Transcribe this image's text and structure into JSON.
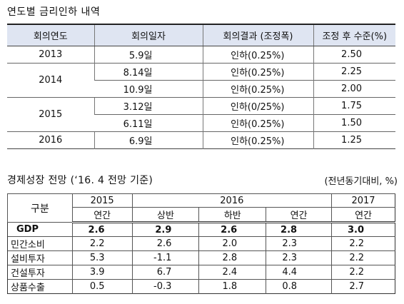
{
  "section1": {
    "title": "연도별 금리인하 내역",
    "headers": [
      "회의연도",
      "회의일자",
      "회의결과 (조정폭)",
      "조정 후 수준(%)"
    ],
    "groups": [
      {
        "year": "2013",
        "rows": [
          {
            "date": "5.9일",
            "result": "인하(0.25%)",
            "level": "2.50"
          }
        ]
      },
      {
        "year": "2014",
        "rows": [
          {
            "date": "8.14일",
            "result": "인하(0.25%)",
            "level": "2.25"
          },
          {
            "date": "10.9일",
            "result": "인하(0.25%)",
            "level": "2.00"
          }
        ]
      },
      {
        "year": "2015",
        "rows": [
          {
            "date": "3.12일",
            "result": "인하(0/25%)",
            "level": "1.75"
          },
          {
            "date": "6.11일",
            "result": "인하(0.25%)",
            "level": "1.50"
          }
        ]
      },
      {
        "year": "2016",
        "rows": [
          {
            "date": "6.9일",
            "result": "인하(0.25%)",
            "level": "1.25"
          }
        ]
      }
    ]
  },
  "section2": {
    "title": "경제성장 전망 (‘16. 4 전망 기준)",
    "unit": "(전년동기대비, %)",
    "header_row1": {
      "category": "구분",
      "y2015": "2015",
      "y2016": "2016",
      "y2017": "2017"
    },
    "header_row2": {
      "c2015": "연간",
      "up": "상반",
      "down": "하반",
      "year2016": "연간",
      "c2017": "연간"
    },
    "rows": [
      {
        "label": "GDP",
        "values": [
          "2.6",
          "2.9",
          "2.6",
          "2.8",
          "3.0"
        ]
      },
      {
        "label": "민간소비",
        "values": [
          "2.2",
          "2.6",
          "2.0",
          "2.3",
          "2.2"
        ]
      },
      {
        "label": "설비투자",
        "values": [
          "5.3",
          "-1.1",
          "2.8",
          "2.3",
          "2.2"
        ]
      },
      {
        "label": "건설투자",
        "values": [
          "3.9",
          "6.7",
          "2.4",
          "4.4",
          "2.2"
        ]
      },
      {
        "label": "상품수출",
        "values": [
          "0.5",
          "-0.3",
          "1.8",
          "0.8",
          "2.7"
        ]
      }
    ]
  }
}
